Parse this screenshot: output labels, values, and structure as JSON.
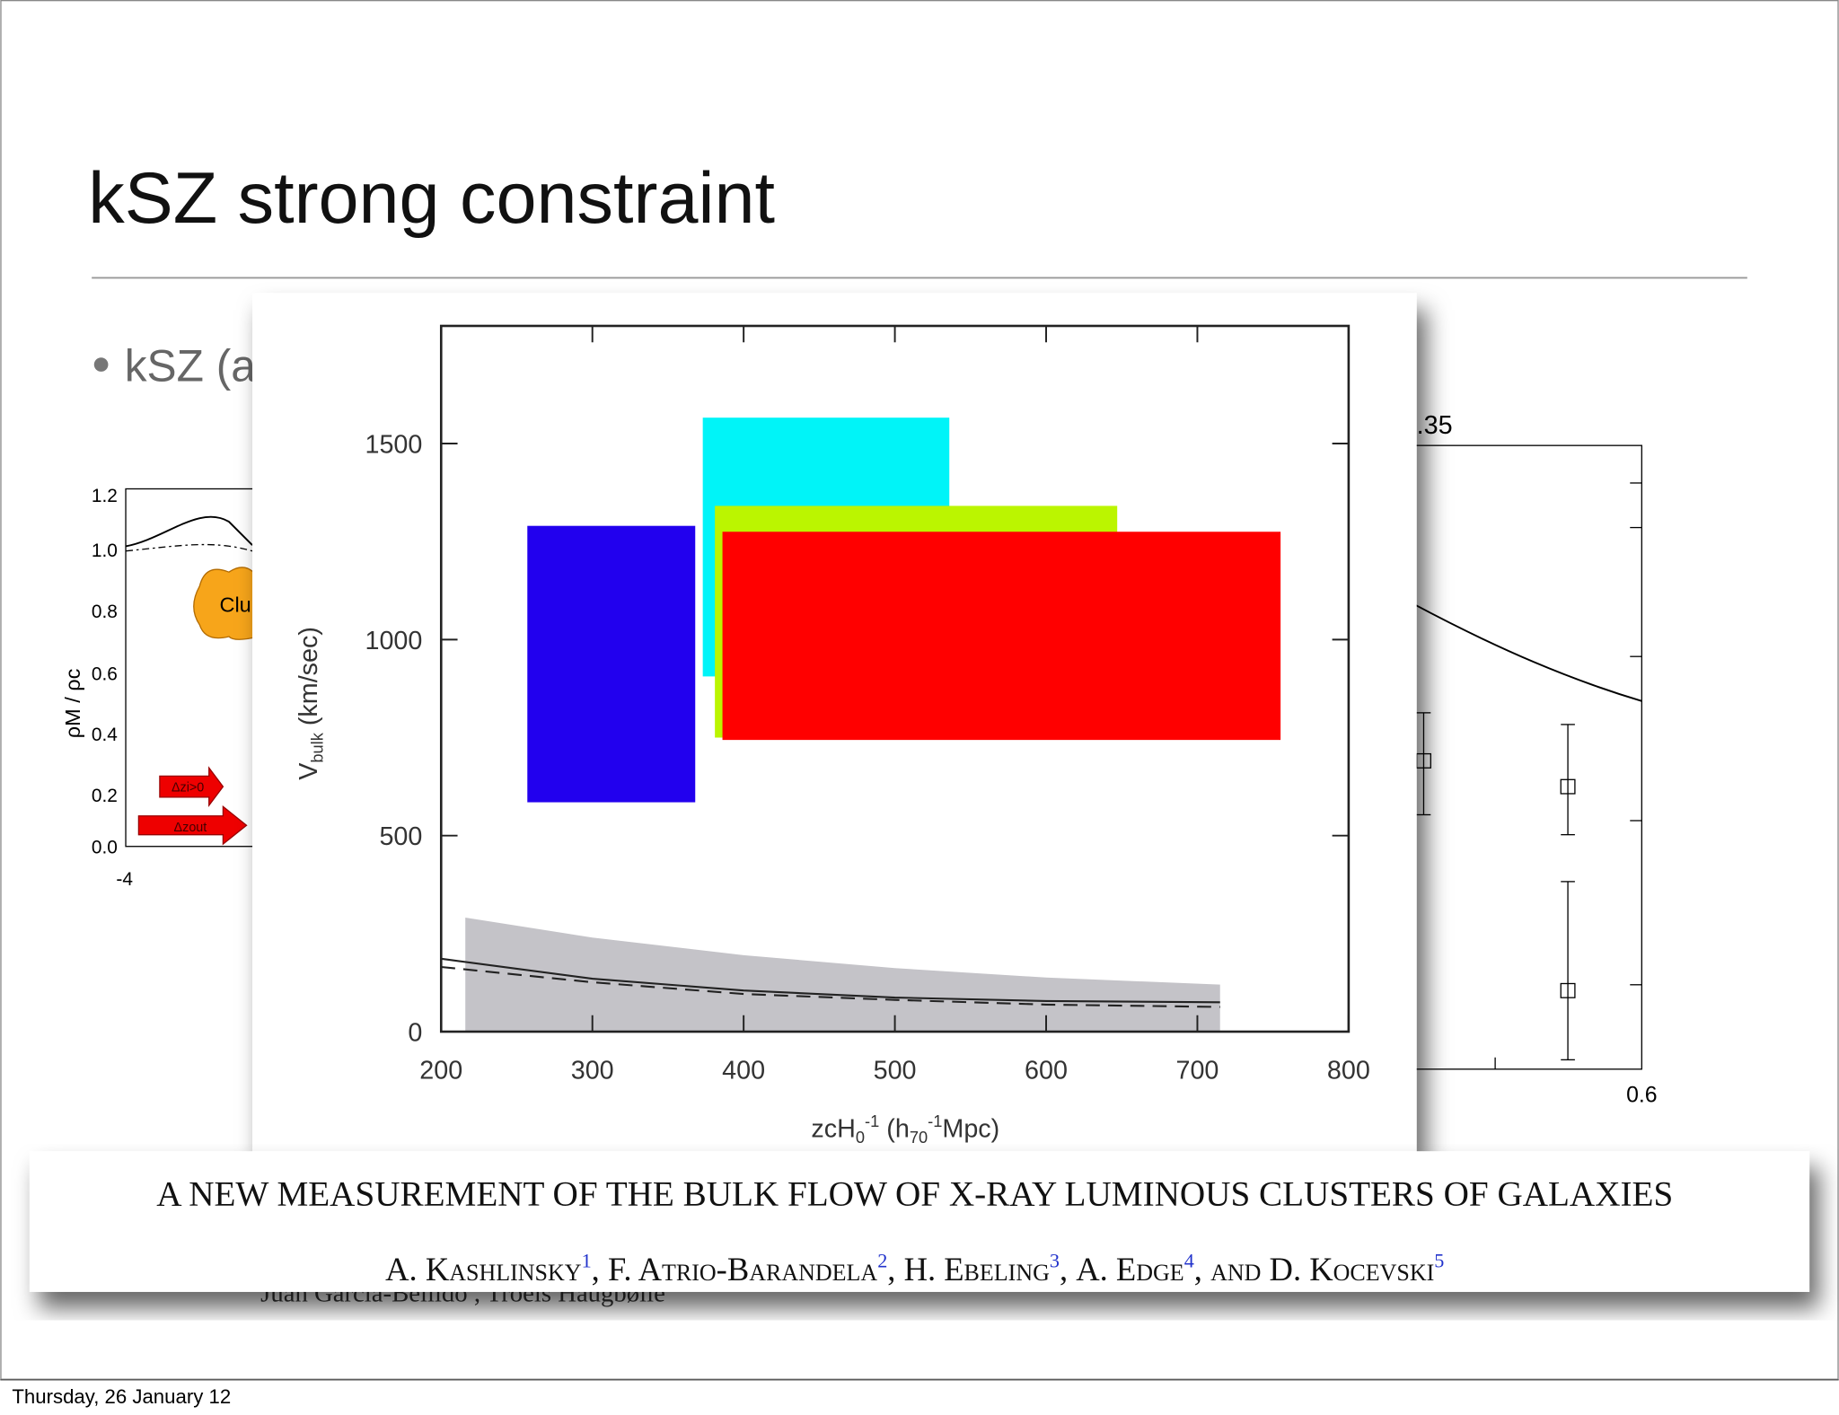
{
  "slide": {
    "title": "kSZ strong constraint",
    "bullet": "kSZ (a",
    "footer": "Thursday, 26 January 12",
    "left_fragment": {
      "yticks": [
        "1.2",
        "1.0",
        "0.8",
        "0.6",
        "0.4",
        "0.2",
        "0.0"
      ],
      "xtick": "-4",
      "ylabel": "ρM / ρc",
      "bubble": "Clu",
      "arrow1": "Δzi>0",
      "arrow2": "Δzout"
    },
    "right_fragment": {
      "top_label": ".35",
      "bottom_label": "0.6"
    },
    "paper": {
      "title": "A NEW MEASUREMENT OF THE BULK FLOW OF X-RAY LUMINOUS CLUSTERS OF GALAXIES",
      "authors": [
        {
          "name": "A. Kashlinsky",
          "sup": "1"
        },
        {
          "name": "F. Atrio-Barandela",
          "sup": "2"
        },
        {
          "name": "H. Ebeling",
          "sup": "3"
        },
        {
          "name": "A. Edge",
          "sup": "4"
        },
        {
          "name": "D. Kocevski",
          "sup": "5"
        }
      ],
      "conjunction": "and",
      "underlying_authors": "Juan García-Bellido , Troels Haugbølle"
    }
  },
  "chart_data": {
    "type": "box_region",
    "xlabel": {
      "main": "zcH",
      "sub": "0",
      "sup": "-1",
      "rest": " (h",
      "sub2": "70",
      "sup2": "-1",
      "rest2": "Mpc)"
    },
    "ylabel": {
      "main": "V",
      "sub": "bulk",
      "rest": " (km/sec)"
    },
    "xlim": [
      200,
      800
    ],
    "xticks": [
      200,
      300,
      400,
      500,
      600,
      700,
      800
    ],
    "ylim": [
      0,
      1800
    ],
    "yticks": [
      0,
      500,
      1000,
      1500
    ],
    "series": [
      {
        "color": "#2200ee",
        "x": [
          257,
          368
        ],
        "y": [
          585,
          1290
        ]
      },
      {
        "color": "#00f4f8",
        "x": [
          373,
          536
        ],
        "y": [
          906,
          1566
        ]
      },
      {
        "color": "#bbf500",
        "x": [
          381,
          647
        ],
        "y": [
          750,
          1341
        ]
      },
      {
        "color": "#ff0000",
        "x": [
          386,
          755
        ],
        "y": [
          744,
          1275
        ]
      }
    ],
    "band": {
      "color": "#c4c3c8",
      "x": [
        216,
        300,
        400,
        500,
        600,
        715
      ],
      "upper": [
        291,
        240,
        195,
        162,
        138,
        120
      ],
      "lower": [
        0,
        0,
        0,
        0,
        0,
        0
      ]
    },
    "lines": [
      {
        "style": "solid",
        "x": [
          200,
          300,
          400,
          500,
          600,
          715
        ],
        "values": [
          186,
          135,
          105,
          87,
          78,
          75
        ]
      },
      {
        "style": "dashed",
        "x": [
          200,
          300,
          400,
          500,
          600,
          715
        ],
        "values": [
          165,
          126,
          96,
          81,
          69,
          63
        ]
      }
    ]
  }
}
